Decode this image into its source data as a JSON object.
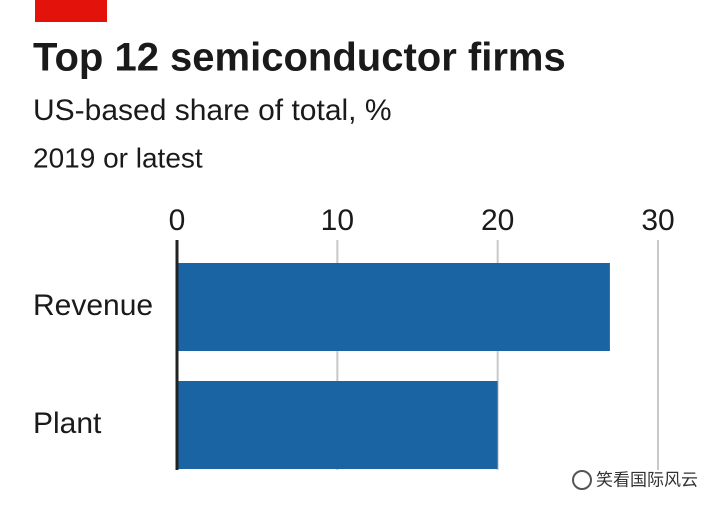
{
  "chart_data": {
    "type": "bar",
    "orientation": "horizontal",
    "title": "Top 12 semiconductor firms",
    "subtitle": "US-based share of total, %",
    "note": "2019 or latest",
    "categories": [
      "Revenue",
      "Plant"
    ],
    "values": [
      27,
      20
    ],
    "color": "#1b64a3",
    "xlim": [
      0,
      30
    ],
    "xticks": [
      0,
      10,
      20,
      30
    ],
    "grid": true,
    "watermark": "笑看国际风云"
  }
}
